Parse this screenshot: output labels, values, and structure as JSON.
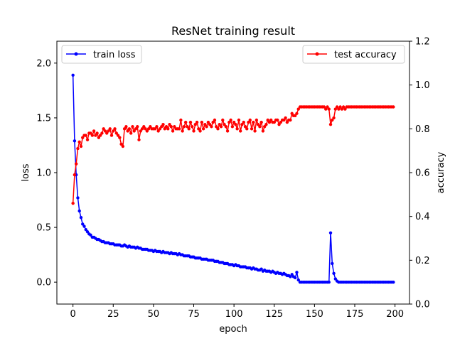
{
  "chart_data": {
    "type": "line",
    "title": "ResNet training result",
    "xlabel": "epoch",
    "ylabel_left": "loss",
    "ylabel_right": "accuracy",
    "xlim": [
      -10,
      209
    ],
    "ylim_left": [
      -0.2,
      2.2
    ],
    "ylim_right": [
      0.0,
      1.2
    ],
    "x_ticks": [
      0,
      25,
      50,
      75,
      100,
      125,
      150,
      175,
      200
    ],
    "y_ticks_left": [
      0.0,
      0.5,
      1.0,
      1.5,
      2.0
    ],
    "y_ticks_right": [
      0.0,
      0.2,
      0.4,
      0.6,
      0.8,
      1.0,
      1.2
    ],
    "x_tick_labels": [
      "0",
      "25",
      "50",
      "75",
      "100",
      "125",
      "150",
      "175",
      "200"
    ],
    "y_tick_labels_left": [
      "0.0",
      "0.5",
      "1.0",
      "1.5",
      "2.0"
    ],
    "y_tick_labels_right": [
      "0.0",
      "0.2",
      "0.4",
      "0.6",
      "0.8",
      "1.0",
      "1.2"
    ],
    "grid": false,
    "series": [
      {
        "name": "train loss",
        "axis": "left",
        "color": "#0000ff",
        "legend_position": "top-left",
        "x": [
          0,
          1,
          2,
          3,
          4,
          5,
          6,
          7,
          8,
          9,
          10,
          11,
          12,
          13,
          14,
          15,
          16,
          17,
          18,
          19,
          20,
          21,
          22,
          23,
          24,
          25,
          26,
          27,
          28,
          29,
          30,
          31,
          32,
          33,
          34,
          35,
          36,
          37,
          38,
          39,
          40,
          41,
          42,
          43,
          44,
          45,
          46,
          47,
          48,
          49,
          50,
          51,
          52,
          53,
          54,
          55,
          56,
          57,
          58,
          59,
          60,
          61,
          62,
          63,
          64,
          65,
          66,
          67,
          68,
          69,
          70,
          71,
          72,
          73,
          74,
          75,
          76,
          77,
          78,
          79,
          80,
          81,
          82,
          83,
          84,
          85,
          86,
          87,
          88,
          89,
          90,
          91,
          92,
          93,
          94,
          95,
          96,
          97,
          98,
          99,
          100,
          101,
          102,
          103,
          104,
          105,
          106,
          107,
          108,
          109,
          110,
          111,
          112,
          113,
          114,
          115,
          116,
          117,
          118,
          119,
          120,
          121,
          122,
          123,
          124,
          125,
          126,
          127,
          128,
          129,
          130,
          131,
          132,
          133,
          134,
          135,
          136,
          137,
          138,
          139,
          140,
          141,
          142,
          143,
          144,
          145,
          146,
          147,
          148,
          149,
          150,
          151,
          152,
          153,
          154,
          155,
          156,
          157,
          158,
          159,
          160,
          161,
          162,
          163,
          164,
          165,
          166,
          167,
          168,
          169,
          170,
          171,
          172,
          173,
          174,
          175,
          176,
          177,
          178,
          179,
          180,
          181,
          182,
          183,
          184,
          185,
          186,
          187,
          188,
          189,
          190,
          191,
          192,
          193,
          194,
          195,
          196,
          197,
          198,
          199
        ],
        "values": [
          1.89,
          1.29,
          0.98,
          0.77,
          0.65,
          0.59,
          0.53,
          0.51,
          0.48,
          0.46,
          0.44,
          0.43,
          0.41,
          0.41,
          0.4,
          0.39,
          0.39,
          0.38,
          0.37,
          0.37,
          0.36,
          0.36,
          0.36,
          0.35,
          0.35,
          0.35,
          0.34,
          0.34,
          0.34,
          0.34,
          0.33,
          0.33,
          0.34,
          0.33,
          0.32,
          0.33,
          0.32,
          0.32,
          0.32,
          0.31,
          0.32,
          0.31,
          0.31,
          0.3,
          0.3,
          0.3,
          0.3,
          0.29,
          0.29,
          0.29,
          0.28,
          0.29,
          0.28,
          0.28,
          0.28,
          0.27,
          0.28,
          0.27,
          0.27,
          0.27,
          0.26,
          0.27,
          0.26,
          0.26,
          0.26,
          0.25,
          0.26,
          0.25,
          0.25,
          0.24,
          0.24,
          0.24,
          0.24,
          0.23,
          0.23,
          0.23,
          0.22,
          0.22,
          0.22,
          0.22,
          0.21,
          0.21,
          0.21,
          0.21,
          0.2,
          0.2,
          0.2,
          0.2,
          0.19,
          0.19,
          0.19,
          0.18,
          0.18,
          0.18,
          0.17,
          0.17,
          0.17,
          0.16,
          0.16,
          0.16,
          0.15,
          0.16,
          0.15,
          0.15,
          0.14,
          0.14,
          0.14,
          0.14,
          0.13,
          0.13,
          0.13,
          0.12,
          0.13,
          0.12,
          0.12,
          0.11,
          0.11,
          0.12,
          0.1,
          0.11,
          0.1,
          0.1,
          0.1,
          0.09,
          0.1,
          0.09,
          0.08,
          0.09,
          0.08,
          0.08,
          0.07,
          0.08,
          0.07,
          0.06,
          0.06,
          0.05,
          0.07,
          0.05,
          0.04,
          0.09,
          0.02,
          0.0,
          0.0,
          0.0,
          0.0,
          0.0,
          0.0,
          0.0,
          0.0,
          0.0,
          0.0,
          0.0,
          0.0,
          0.0,
          0.0,
          0.0,
          0.0,
          0.0,
          0.0,
          0.0,
          0.45,
          0.17,
          0.08,
          0.03,
          0.01,
          0.0,
          0.0,
          0.0,
          0.0,
          0.0,
          0.0,
          0.0,
          0.0,
          0.0,
          0.0,
          0.0,
          0.0,
          0.0,
          0.0,
          0.0,
          0.0,
          0.0,
          0.0,
          0.0,
          0.0,
          0.0,
          0.0,
          0.0,
          0.0,
          0.0,
          0.0,
          0.0,
          0.0,
          0.0,
          0.0,
          0.0,
          0.0,
          0.0,
          0.0,
          0.0
        ]
      },
      {
        "name": "test accuracy",
        "axis": "right",
        "color": "#ff0000",
        "legend_position": "top-right",
        "x": [
          0,
          1,
          2,
          3,
          4,
          5,
          6,
          7,
          8,
          9,
          10,
          11,
          12,
          13,
          14,
          15,
          16,
          17,
          18,
          19,
          20,
          21,
          22,
          23,
          24,
          25,
          26,
          27,
          28,
          29,
          30,
          31,
          32,
          33,
          34,
          35,
          36,
          37,
          38,
          39,
          40,
          41,
          42,
          43,
          44,
          45,
          46,
          47,
          48,
          49,
          50,
          51,
          52,
          53,
          54,
          55,
          56,
          57,
          58,
          59,
          60,
          61,
          62,
          63,
          64,
          65,
          66,
          67,
          68,
          69,
          70,
          71,
          72,
          73,
          74,
          75,
          76,
          77,
          78,
          79,
          80,
          81,
          82,
          83,
          84,
          85,
          86,
          87,
          88,
          89,
          90,
          91,
          92,
          93,
          94,
          95,
          96,
          97,
          98,
          99,
          100,
          101,
          102,
          103,
          104,
          105,
          106,
          107,
          108,
          109,
          110,
          111,
          112,
          113,
          114,
          115,
          116,
          117,
          118,
          119,
          120,
          121,
          122,
          123,
          124,
          125,
          126,
          127,
          128,
          129,
          130,
          131,
          132,
          133,
          134,
          135,
          136,
          137,
          138,
          139,
          140,
          141,
          142,
          143,
          144,
          145,
          146,
          147,
          148,
          149,
          150,
          151,
          152,
          153,
          154,
          155,
          156,
          157,
          158,
          159,
          160,
          161,
          162,
          163,
          164,
          165,
          166,
          167,
          168,
          169,
          170,
          171,
          172,
          173,
          174,
          175,
          176,
          177,
          178,
          179,
          180,
          181,
          182,
          183,
          184,
          185,
          186,
          187,
          188,
          189,
          190,
          191,
          192,
          193,
          194,
          195,
          196,
          197,
          198,
          199
        ],
        "values": [
          0.46,
          0.59,
          0.64,
          0.71,
          0.74,
          0.72,
          0.76,
          0.77,
          0.77,
          0.75,
          0.78,
          0.78,
          0.77,
          0.79,
          0.77,
          0.78,
          0.76,
          0.77,
          0.78,
          0.8,
          0.79,
          0.78,
          0.79,
          0.8,
          0.77,
          0.79,
          0.8,
          0.78,
          0.77,
          0.76,
          0.73,
          0.72,
          0.8,
          0.81,
          0.79,
          0.8,
          0.78,
          0.81,
          0.79,
          0.8,
          0.81,
          0.75,
          0.79,
          0.8,
          0.81,
          0.8,
          0.79,
          0.8,
          0.81,
          0.8,
          0.8,
          0.8,
          0.81,
          0.79,
          0.8,
          0.81,
          0.82,
          0.8,
          0.81,
          0.8,
          0.82,
          0.81,
          0.79,
          0.81,
          0.8,
          0.8,
          0.8,
          0.84,
          0.79,
          0.81,
          0.83,
          0.81,
          0.8,
          0.83,
          0.81,
          0.79,
          0.82,
          0.83,
          0.8,
          0.79,
          0.83,
          0.8,
          0.82,
          0.81,
          0.83,
          0.82,
          0.81,
          0.83,
          0.84,
          0.81,
          0.8,
          0.82,
          0.81,
          0.84,
          0.82,
          0.81,
          0.79,
          0.83,
          0.84,
          0.81,
          0.83,
          0.82,
          0.8,
          0.84,
          0.79,
          0.82,
          0.83,
          0.81,
          0.8,
          0.83,
          0.84,
          0.8,
          0.83,
          0.79,
          0.84,
          0.82,
          0.81,
          0.83,
          0.79,
          0.81,
          0.82,
          0.84,
          0.83,
          0.84,
          0.83,
          0.83,
          0.84,
          0.84,
          0.82,
          0.83,
          0.84,
          0.84,
          0.85,
          0.83,
          0.84,
          0.84,
          0.87,
          0.86,
          0.86,
          0.87,
          0.89,
          0.9,
          0.9,
          0.9,
          0.9,
          0.9,
          0.9,
          0.9,
          0.9,
          0.9,
          0.9,
          0.9,
          0.9,
          0.9,
          0.9,
          0.9,
          0.9,
          0.89,
          0.9,
          0.89,
          0.82,
          0.84,
          0.85,
          0.89,
          0.9,
          0.89,
          0.9,
          0.89,
          0.9,
          0.89,
          0.9,
          0.9,
          0.9,
          0.9,
          0.9,
          0.9,
          0.9,
          0.9,
          0.9,
          0.9,
          0.9,
          0.9,
          0.9,
          0.9,
          0.9,
          0.9,
          0.9,
          0.9,
          0.9,
          0.9,
          0.9,
          0.9,
          0.9,
          0.9,
          0.9,
          0.9,
          0.9,
          0.9,
          0.9,
          0.9
        ]
      }
    ]
  }
}
